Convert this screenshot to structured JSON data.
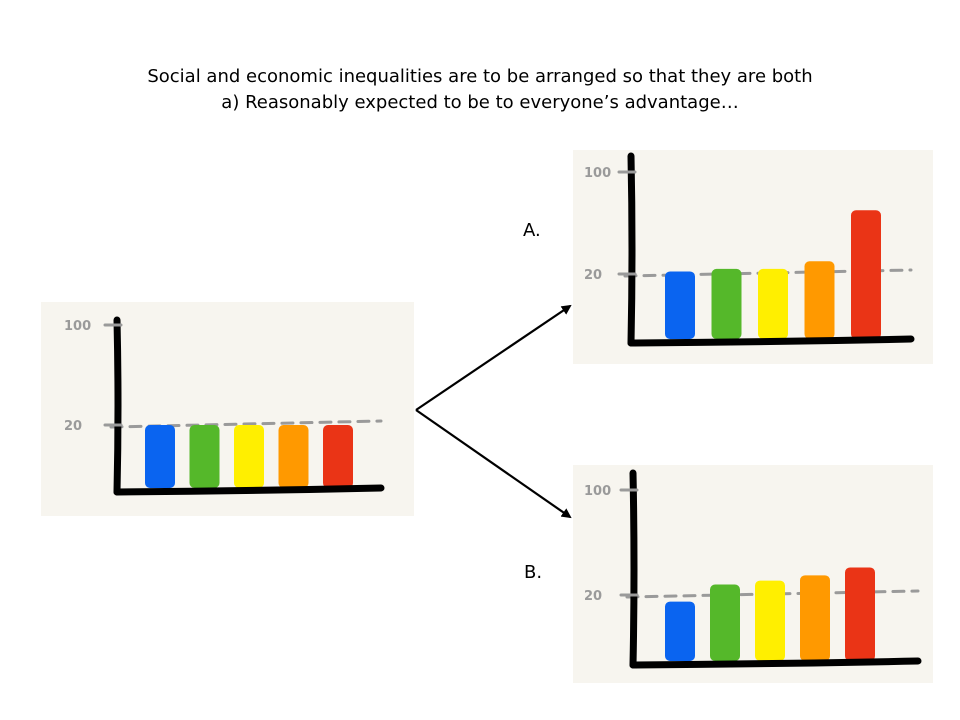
{
  "slide": {
    "title_line1": "Social and economic inequalities are to be arranged so that they are both",
    "title_line2": "a) Reasonably expected to be to everyone’s advantage…",
    "option_a": "A.",
    "option_b": "B."
  },
  "colors": {
    "panel_bg": "#f7f5ef",
    "axis": "#000000",
    "dash": "#9a9a9a",
    "tick_text": "#9a9a9a",
    "bars": [
      "#0a64f0",
      "#55b82a",
      "#ffef00",
      "#ff9900",
      "#ea3416"
    ]
  },
  "chart_data": [
    {
      "type": "bar",
      "title": "",
      "categories": [
        "",
        "",
        "",
        "",
        ""
      ],
      "values": [
        20,
        20,
        20,
        20,
        20
      ],
      "yticks": [
        "100",
        "20"
      ],
      "reference_line": 20,
      "ylim": [
        0,
        100
      ],
      "grid": false,
      "legend": "none"
    },
    {
      "type": "bar",
      "title": "",
      "categories": [
        "",
        "",
        "",
        "",
        ""
      ],
      "values": [
        22,
        24,
        24,
        30,
        70
      ],
      "yticks": [
        "100",
        "20"
      ],
      "reference_line": 20,
      "ylim": [
        0,
        100
      ],
      "grid": false,
      "legend": "none"
    },
    {
      "type": "bar",
      "title": "",
      "categories": [
        "",
        "",
        "",
        "",
        ""
      ],
      "values": [
        15,
        28,
        31,
        35,
        41
      ],
      "yticks": [
        "100",
        "20"
      ],
      "reference_line": 20,
      "ylim": [
        0,
        100
      ],
      "grid": false,
      "legend": "none"
    }
  ]
}
